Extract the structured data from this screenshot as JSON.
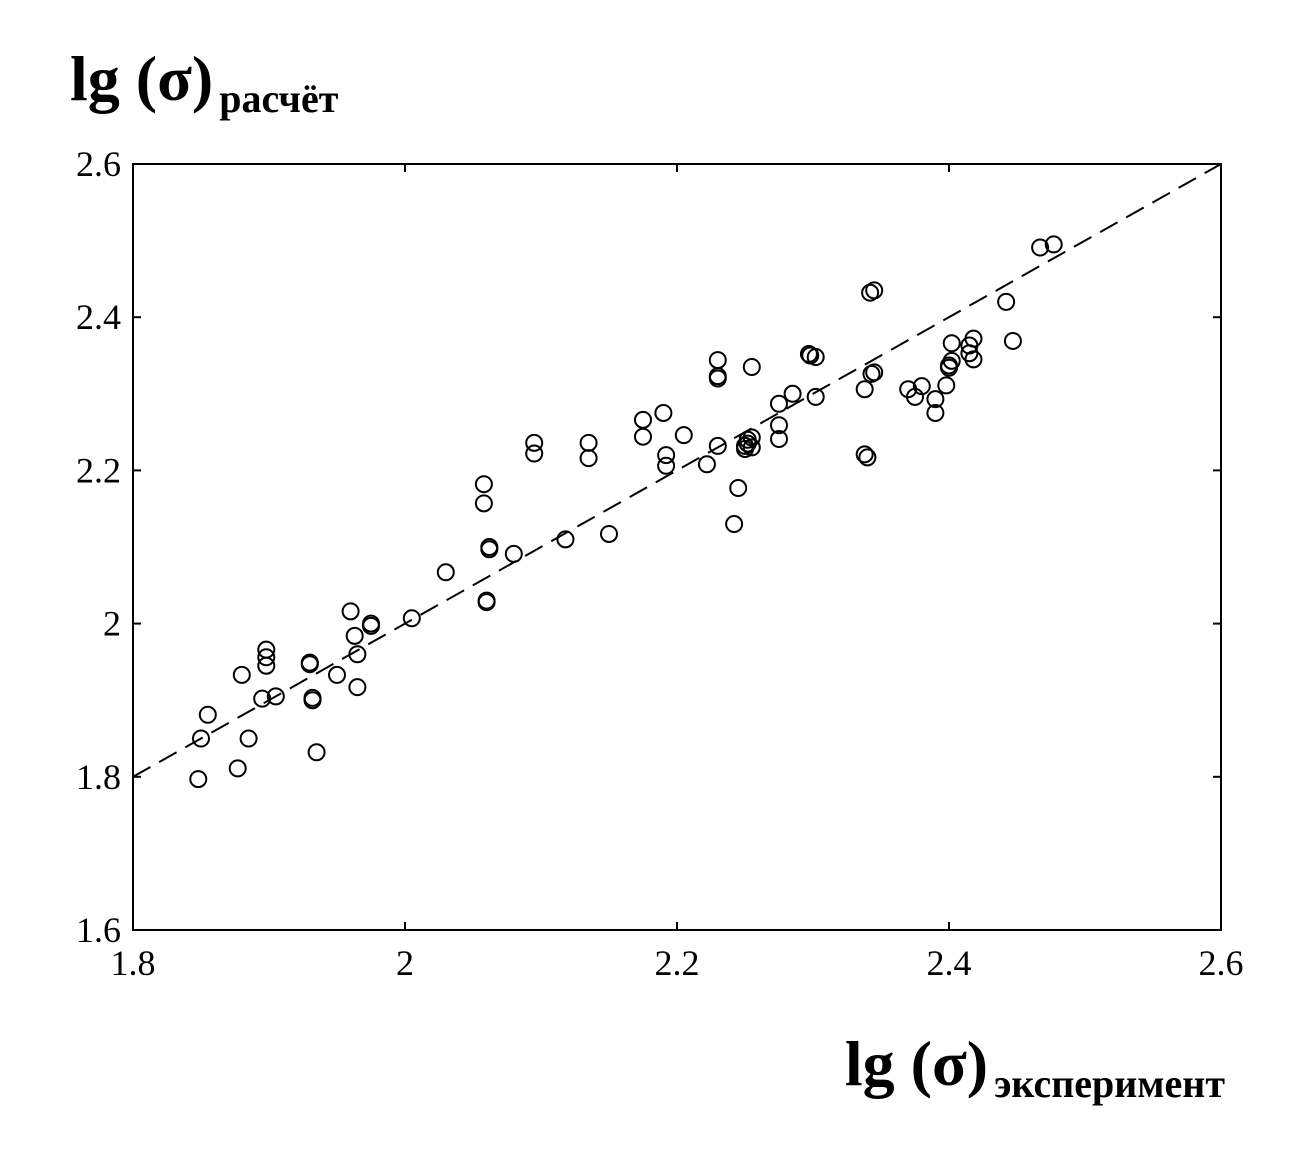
{
  "chart_data": {
    "type": "scatter",
    "title": "",
    "xlabel": {
      "main": "lg (σ)",
      "sub": "эксперимент"
    },
    "ylabel": {
      "main": "lg (σ)",
      "sub": "расчёт"
    },
    "xlim": [
      1.8,
      2.6
    ],
    "ylim": [
      1.6,
      2.6
    ],
    "xticks": [
      "1.8",
      "2",
      "2.2",
      "2.4",
      "2.6"
    ],
    "yticks": [
      "1.6",
      "1.8",
      "2",
      "2.2",
      "2.4",
      "2.6"
    ],
    "grid": false,
    "legend": "none",
    "reference_line": {
      "style": "dashed",
      "from": [
        1.8,
        1.8
      ],
      "to": [
        2.6,
        2.6
      ]
    },
    "series": [
      {
        "marker": "open-circle",
        "points": [
          [
            1.848,
            1.797
          ],
          [
            1.85,
            1.85
          ],
          [
            1.855,
            1.881
          ],
          [
            1.877,
            1.811
          ],
          [
            1.88,
            1.933
          ],
          [
            1.885,
            1.85
          ],
          [
            1.895,
            1.902
          ],
          [
            1.898,
            1.945
          ],
          [
            1.898,
            1.956
          ],
          [
            1.898,
            1.966
          ],
          [
            1.905,
            1.905
          ],
          [
            1.93,
            1.947
          ],
          [
            1.93,
            1.949
          ],
          [
            1.932,
            1.903
          ],
          [
            1.932,
            1.9
          ],
          [
            1.935,
            1.832
          ],
          [
            1.95,
            1.933
          ],
          [
            1.96,
            2.016
          ],
          [
            1.963,
            1.984
          ],
          [
            1.965,
            1.96
          ],
          [
            1.965,
            1.917
          ],
          [
            1.975,
            1.997
          ],
          [
            1.975,
            2.0
          ],
          [
            2.005,
            2.007
          ],
          [
            2.03,
            2.067
          ],
          [
            2.058,
            2.182
          ],
          [
            2.058,
            2.157
          ],
          [
            2.06,
            2.03
          ],
          [
            2.06,
            2.028
          ],
          [
            2.062,
            2.1
          ],
          [
            2.062,
            2.097
          ],
          [
            2.08,
            2.091
          ],
          [
            2.095,
            2.236
          ],
          [
            2.095,
            2.222
          ],
          [
            2.118,
            2.11
          ],
          [
            2.135,
            2.236
          ],
          [
            2.135,
            2.216
          ],
          [
            2.15,
            2.117
          ],
          [
            2.175,
            2.266
          ],
          [
            2.175,
            2.244
          ],
          [
            2.19,
            2.275
          ],
          [
            2.192,
            2.22
          ],
          [
            2.192,
            2.206
          ],
          [
            2.205,
            2.246
          ],
          [
            2.222,
            2.208
          ],
          [
            2.23,
            2.344
          ],
          [
            2.23,
            2.323
          ],
          [
            2.23,
            2.32
          ],
          [
            2.23,
            2.232
          ],
          [
            2.242,
            2.13
          ],
          [
            2.245,
            2.177
          ],
          [
            2.25,
            2.232
          ],
          [
            2.25,
            2.228
          ],
          [
            2.252,
            2.24
          ],
          [
            2.252,
            2.235
          ],
          [
            2.255,
            2.243
          ],
          [
            2.255,
            2.23
          ],
          [
            2.255,
            2.335
          ],
          [
            2.275,
            2.287
          ],
          [
            2.275,
            2.259
          ],
          [
            2.275,
            2.241
          ],
          [
            2.285,
            2.3
          ],
          [
            2.297,
            2.352
          ],
          [
            2.298,
            2.35
          ],
          [
            2.302,
            2.348
          ],
          [
            2.302,
            2.296
          ],
          [
            2.338,
            2.221
          ],
          [
            2.34,
            2.217
          ],
          [
            2.338,
            2.306
          ],
          [
            2.342,
            2.432
          ],
          [
            2.345,
            2.435
          ],
          [
            2.343,
            2.326
          ],
          [
            2.345,
            2.328
          ],
          [
            2.37,
            2.306
          ],
          [
            2.375,
            2.296
          ],
          [
            2.38,
            2.31
          ],
          [
            2.39,
            2.275
          ],
          [
            2.39,
            2.293
          ],
          [
            2.398,
            2.311
          ],
          [
            2.4,
            2.334
          ],
          [
            2.4,
            2.337
          ],
          [
            2.402,
            2.366
          ],
          [
            2.402,
            2.343
          ],
          [
            2.415,
            2.363
          ],
          [
            2.415,
            2.353
          ],
          [
            2.418,
            2.372
          ],
          [
            2.418,
            2.345
          ],
          [
            2.442,
            2.42
          ],
          [
            2.447,
            2.369
          ],
          [
            2.467,
            2.491
          ],
          [
            2.477,
            2.495
          ]
        ]
      }
    ]
  }
}
